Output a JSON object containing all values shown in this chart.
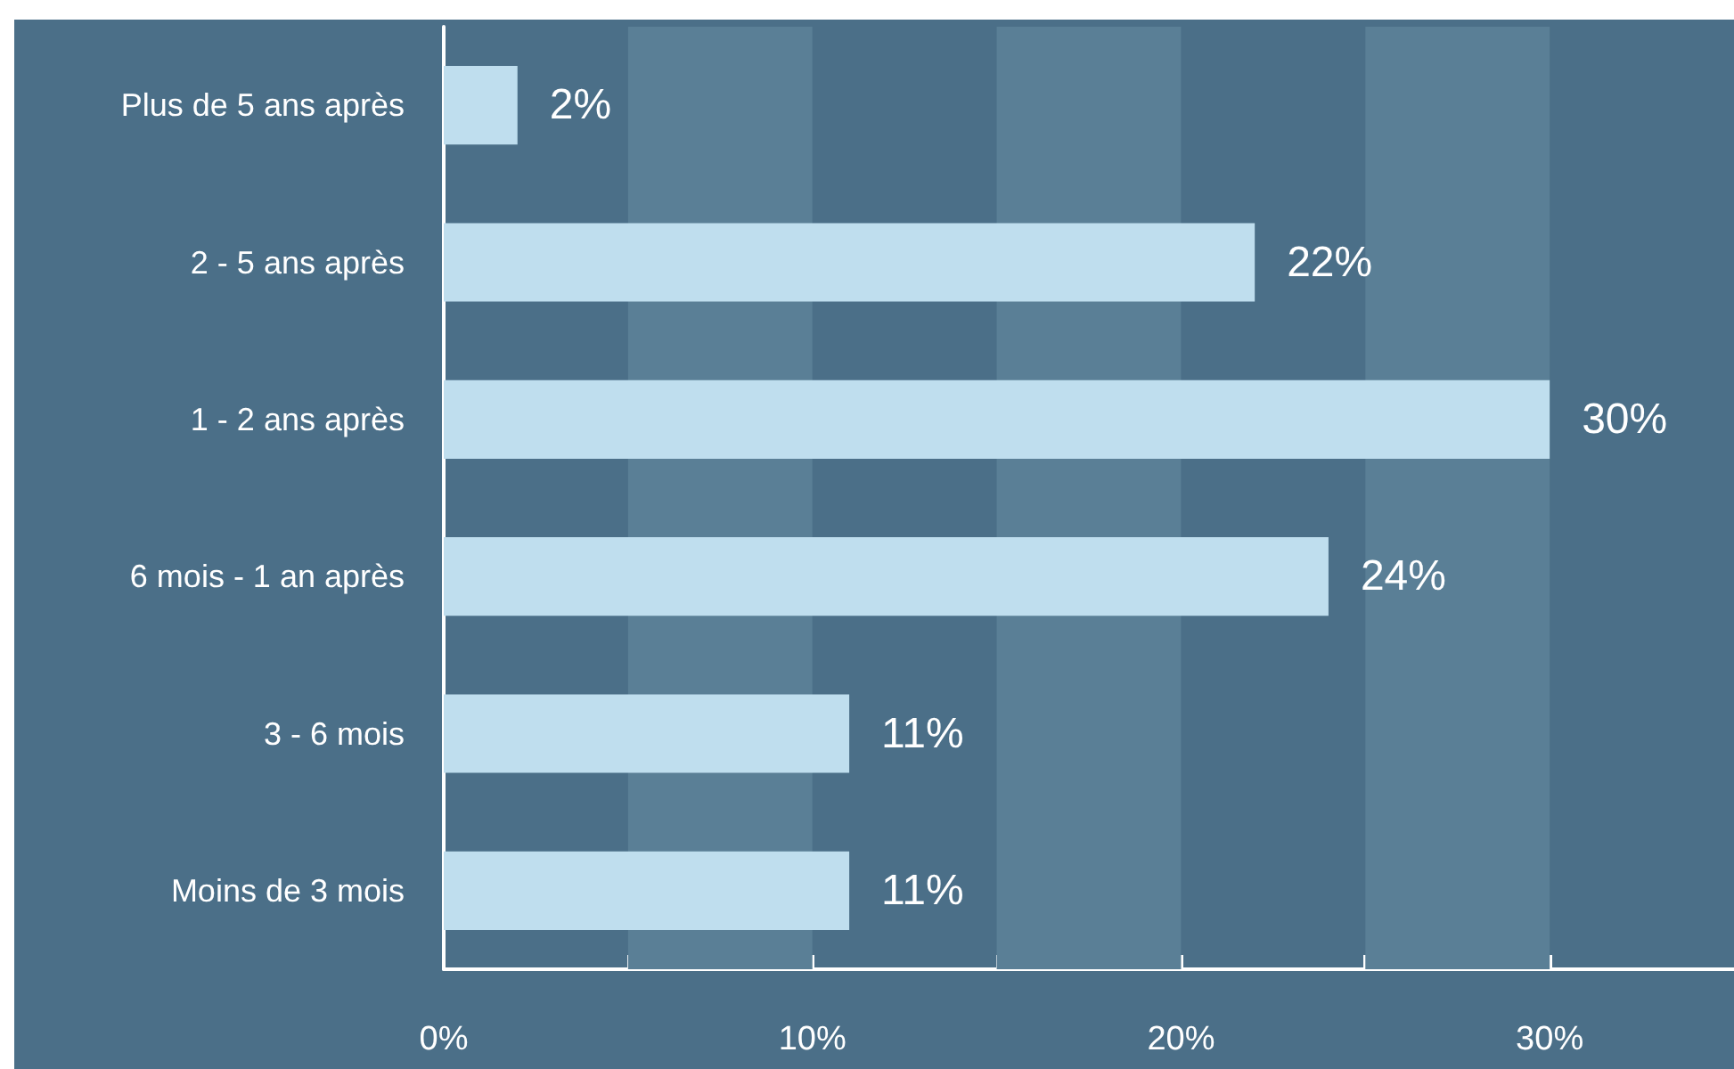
{
  "chart_data": {
    "type": "bar",
    "orientation": "horizontal",
    "categories": [
      "Plus de 5 ans après",
      "2 - 5 ans après",
      "1 - 2 ans après",
      "6 mois - 1 an après",
      "3 - 6 mois",
      "Moins de 3 mois"
    ],
    "values": [
      2,
      22,
      30,
      24,
      11,
      11
    ],
    "value_labels": [
      "2%",
      "22%",
      "30%",
      "24%",
      "11%",
      "11%"
    ],
    "color": "#bfdeee",
    "xlim": [
      0,
      35
    ],
    "xticks": [
      {
        "value": 0,
        "label": "0%"
      },
      {
        "value": 5,
        "label": null
      },
      {
        "value": 10,
        "label": "10%"
      },
      {
        "value": 15,
        "label": null
      },
      {
        "value": 20,
        "label": "20%"
      },
      {
        "value": 25,
        "label": null
      },
      {
        "value": 30,
        "label": "30%"
      }
    ],
    "bands": [
      {
        "axis": "x",
        "from": 5,
        "to": 10,
        "color": "#5a7f96"
      },
      {
        "axis": "x",
        "from": 15,
        "to": 20,
        "color": "#5a7f96"
      },
      {
        "axis": "x",
        "from": 25,
        "to": 30,
        "color": "#5a7f96"
      }
    ],
    "grid": false
  }
}
